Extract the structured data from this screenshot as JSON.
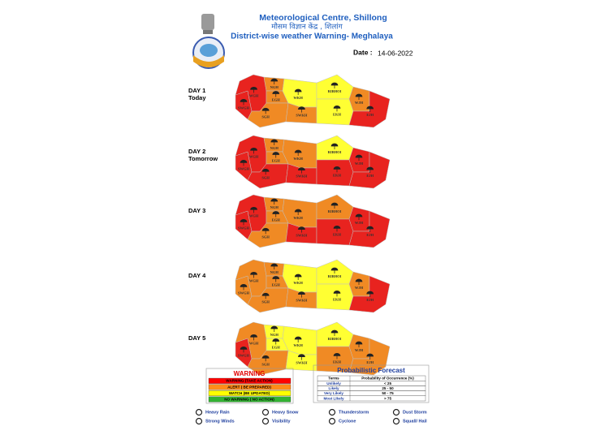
{
  "header": {
    "title": "Meteorological Centre, Shillong",
    "hindi": "मौसम विज्ञान केंद्र , शिलांग",
    "subtitle": "District-wise weather Warning- Meghalaya",
    "date_label": "Date :",
    "date": "14-06-2022"
  },
  "districts": [
    "SWGH",
    "WGH",
    "NGH",
    "EGH",
    "SGH",
    "WKH",
    "SWKH",
    "RIBHOI",
    "EKH",
    "WJH",
    "EJH"
  ],
  "days": [
    {
      "label": "DAY 1",
      "sub": "Today",
      "colors": [
        "#e8231f",
        "#e8231f",
        "#f08a24",
        "#f08a24",
        "#f08a24",
        "#ffff33",
        "#f08a24",
        "#ffff33",
        "#ffff33",
        "#f08a24",
        "#e8231f"
      ]
    },
    {
      "label": "DAY 2",
      "sub": "Tomorrow",
      "colors": [
        "#e8231f",
        "#e8231f",
        "#f08a24",
        "#f08a24",
        "#e8231f",
        "#f08a24",
        "#e8231f",
        "#ffff33",
        "#e8231f",
        "#e8231f",
        "#e8231f"
      ]
    },
    {
      "label": "DAY 3",
      "colors": [
        "#e8231f",
        "#e8231f",
        "#f08a24",
        "#f08a24",
        "#f08a24",
        "#f08a24",
        "#e8231f",
        "#f08a24",
        "#e8231f",
        "#e8231f",
        "#e8231f"
      ]
    },
    {
      "label": "DAY 4",
      "colors": [
        "#f08a24",
        "#f08a24",
        "#f08a24",
        "#f08a24",
        "#f08a24",
        "#ffff33",
        "#f08a24",
        "#ffff33",
        "#ffff33",
        "#f08a24",
        "#e8231f"
      ]
    },
    {
      "label": "DAY 5",
      "colors": [
        "#e8231f",
        "#f08a24",
        "#ffff33",
        "#ffff33",
        "#f08a24",
        "#ffff33",
        "#ffff33",
        "#ffff33",
        "#f08a24",
        "#f08a24",
        "#f08a24"
      ]
    }
  ],
  "warning_legend": {
    "title": "WARNING",
    "items": [
      {
        "label": "WARNING (TAKE ACTION)",
        "color": "#ff0000"
      },
      {
        "label": "ALERT ( BE PREPARED)",
        "color": "#ff8c1a"
      },
      {
        "label": "WATCH (BE UPDATED)",
        "color": "#ffff00"
      },
      {
        "label": "NO WARNING ( NO ACTION)",
        "color": "#33b233"
      }
    ]
  },
  "probabilistic": {
    "title": "Probabilistic  Forecast",
    "header": [
      "Terms",
      "Probability of Occurrence (%)"
    ],
    "rows": [
      [
        "Unlikely",
        "< 25"
      ],
      [
        "Likely",
        "25 - 50"
      ],
      [
        "Very Likely",
        "50 - 75"
      ],
      [
        "Most Likely",
        "> 75"
      ]
    ]
  },
  "symbols": [
    "Heavy Rain",
    "Heavy Snow",
    "Thunderstorm",
    "Dust Storm",
    "Strong Winds",
    "Visibility",
    "Cyclone",
    "Squall/ Hail"
  ]
}
